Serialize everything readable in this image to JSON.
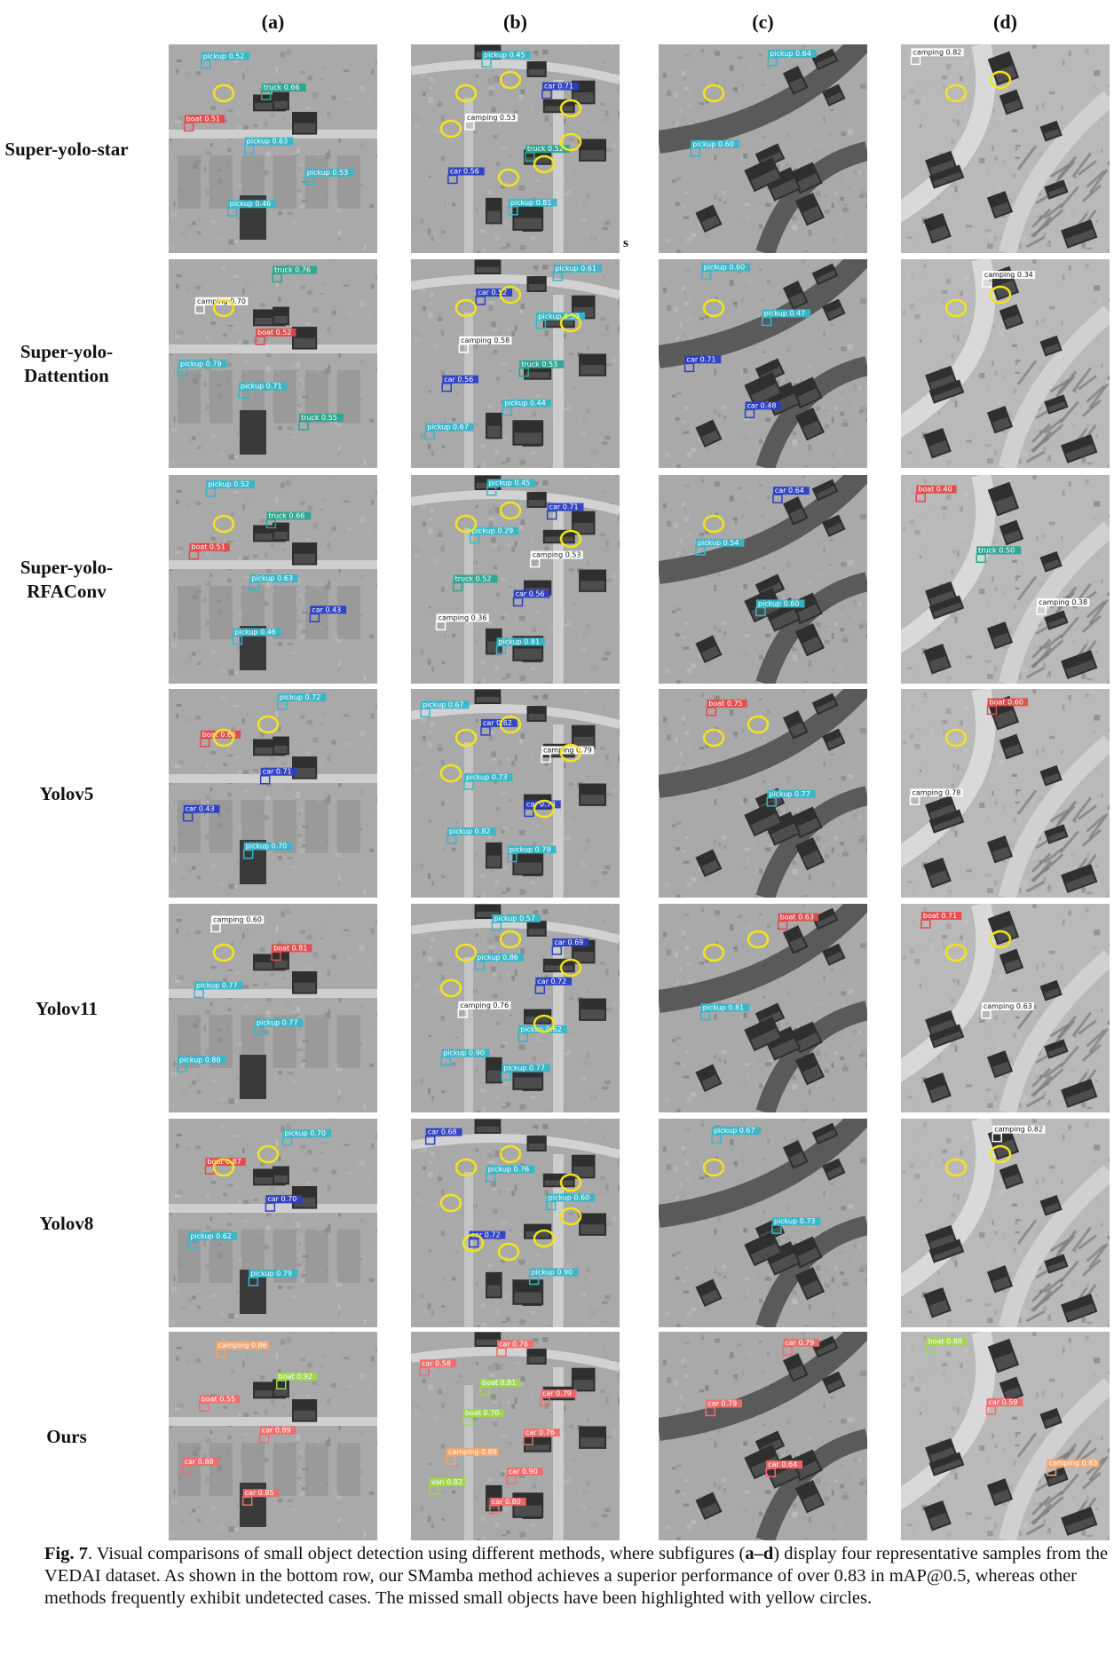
{
  "columns": [
    "(a)",
    "(b)",
    "(c)",
    "(d)"
  ],
  "rows": [
    {
      "label1": "Super-yolo-star",
      "label2": "",
      "panels": [
        {
          "labels": [
            {
              "t": "pickup 0.52",
              "c": "#35b7c9"
            },
            {
              "t": "truck 0.66",
              "c": "#2aa58f"
            },
            {
              "t": "boat 0.51",
              "c": "#e24a4a"
            },
            {
              "t": "pickup 0.63",
              "c": "#35b7c9"
            },
            {
              "t": "pickup 0.53",
              "c": "#35b7c9"
            },
            {
              "t": "pickup 0.46",
              "c": "#35b7c9"
            }
          ],
          "circles": 1
        },
        {
          "labels": [
            {
              "t": "pickup 0.45",
              "c": "#35b7c9"
            },
            {
              "t": "car 0.71",
              "c": "#2b3fc4"
            },
            {
              "t": "camping 0.53",
              "c": "#ffffff"
            },
            {
              "t": "truck 0.52",
              "c": "#2aa58f"
            },
            {
              "t": "car 0.56",
              "c": "#2b3fc4"
            },
            {
              "t": "pickup 0.81",
              "c": "#35b7c9"
            }
          ],
          "circles": 7
        },
        {
          "labels": [
            {
              "t": "pickup 0.64",
              "c": "#35b7c9"
            },
            {
              "t": "pickup 0.60",
              "c": "#35b7c9"
            }
          ],
          "circles": 1
        },
        {
          "labels": [
            {
              "t": "camping 0.82",
              "c": "#ffffff"
            }
          ],
          "circles": 2
        }
      ]
    },
    {
      "label1": "Super-yolo-",
      "label2": "Dattention",
      "panels": [
        {
          "labels": [
            {
              "t": "truck 0.76",
              "c": "#2aa58f"
            },
            {
              "t": "camping 0.70",
              "c": "#ffffff"
            },
            {
              "t": "boat 0.52",
              "c": "#e24a4a"
            },
            {
              "t": "pickup 0.79",
              "c": "#35b7c9"
            },
            {
              "t": "pickup 0.71",
              "c": "#35b7c9"
            },
            {
              "t": "truck 0.55",
              "c": "#2aa58f"
            }
          ],
          "circles": 1
        },
        {
          "labels": [
            {
              "t": "pickup 0.61",
              "c": "#35b7c9"
            },
            {
              "t": "car 0.52",
              "c": "#2b3fc4"
            },
            {
              "t": "pickup 0.59",
              "c": "#35b7c9"
            },
            {
              "t": "camping 0.58",
              "c": "#ffffff"
            },
            {
              "t": "truck 0.53",
              "c": "#2aa58f"
            },
            {
              "t": "car 0.56",
              "c": "#2b3fc4"
            },
            {
              "t": "pickup 0.44",
              "c": "#35b7c9"
            },
            {
              "t": "pickup 0.67",
              "c": "#35b7c9"
            }
          ],
          "circles": 3
        },
        {
          "labels": [
            {
              "t": "pickup 0.60",
              "c": "#35b7c9"
            },
            {
              "t": "pickup 0.47",
              "c": "#35b7c9"
            },
            {
              "t": "car 0.71",
              "c": "#2b3fc4"
            },
            {
              "t": "car 0.48",
              "c": "#2b3fc4"
            }
          ],
          "circles": 1
        },
        {
          "labels": [
            {
              "t": "camping 0.34",
              "c": "#ffffff"
            }
          ],
          "circles": 2
        }
      ]
    },
    {
      "label1": "Super-yolo-",
      "label2": "RFAConv",
      "panels": [
        {
          "labels": [
            {
              "t": "pickup 0.52",
              "c": "#35b7c9"
            },
            {
              "t": "truck 0.66",
              "c": "#2aa58f"
            },
            {
              "t": "boat 0.51",
              "c": "#e24a4a"
            },
            {
              "t": "pickup 0.63",
              "c": "#35b7c9"
            },
            {
              "t": "car 0.43",
              "c": "#2b3fc4"
            },
            {
              "t": "pickup 0.46",
              "c": "#35b7c9"
            }
          ],
          "circles": 1
        },
        {
          "labels": [
            {
              "t": "pickup 0.45",
              "c": "#35b7c9"
            },
            {
              "t": "car 0.71",
              "c": "#2b3fc4"
            },
            {
              "t": "pickup 0.29",
              "c": "#35b7c9"
            },
            {
              "t": "camping 0.53",
              "c": "#ffffff"
            },
            {
              "t": "truck 0.52",
              "c": "#2aa58f"
            },
            {
              "t": "car 0.56",
              "c": "#2b3fc4"
            },
            {
              "t": "camping 0.36",
              "c": "#ffffff"
            },
            {
              "t": "pickup 0.81",
              "c": "#35b7c9"
            }
          ],
          "circles": 3
        },
        {
          "labels": [
            {
              "t": "car 0.64",
              "c": "#2b3fc4"
            },
            {
              "t": "pickup 0.54",
              "c": "#35b7c9"
            },
            {
              "t": "pickup 0.60",
              "c": "#35b7c9"
            }
          ],
          "circles": 1
        },
        {
          "labels": [
            {
              "t": "boat 0.40",
              "c": "#e24a4a"
            },
            {
              "t": "truck 0.50",
              "c": "#2aa58f"
            },
            {
              "t": "camping 0.38",
              "c": "#ffffff"
            }
          ],
          "circles": 0
        }
      ]
    },
    {
      "label1": "Yolov5",
      "label2": "",
      "panels": [
        {
          "labels": [
            {
              "t": "pickup 0.72",
              "c": "#35b7c9"
            },
            {
              "t": "boat 0.65",
              "c": "#e24a4a"
            },
            {
              "t": "car 0.71",
              "c": "#2b3fc4"
            },
            {
              "t": "car 0.43",
              "c": "#2b3fc4"
            },
            {
              "t": "pickup 0.70",
              "c": "#35b7c9"
            }
          ],
          "circles": 2
        },
        {
          "labels": [
            {
              "t": "pickup 0.67",
              "c": "#35b7c9"
            },
            {
              "t": "car 0.62",
              "c": "#2b3fc4"
            },
            {
              "t": "camping 0.79",
              "c": "#ffffff"
            },
            {
              "t": "pickup 0.73",
              "c": "#35b7c9"
            },
            {
              "t": "car 0.78",
              "c": "#2b3fc4"
            },
            {
              "t": "pickup 0.82",
              "c": "#35b7c9"
            },
            {
              "t": "pickup 0.79",
              "c": "#35b7c9"
            }
          ],
          "circles": 5
        },
        {
          "labels": [
            {
              "t": "boat 0.75",
              "c": "#e24a4a"
            },
            {
              "t": "pickup 0.77",
              "c": "#35b7c9"
            }
          ],
          "circles": 2
        },
        {
          "labels": [
            {
              "t": "boat 0.60",
              "c": "#e24a4a"
            },
            {
              "t": "camping 0.78",
              "c": "#ffffff"
            }
          ],
          "circles": 1
        }
      ]
    },
    {
      "label1": "Yolov11",
      "label2": "",
      "panels": [
        {
          "labels": [
            {
              "t": "camping 0.60",
              "c": "#ffffff"
            },
            {
              "t": "boat 0.81",
              "c": "#e24a4a"
            },
            {
              "t": "pickup 0.77",
              "c": "#35b7c9"
            },
            {
              "t": "pickup 0.77",
              "c": "#35b7c9"
            },
            {
              "t": "pickup 0.80",
              "c": "#35b7c9"
            }
          ],
          "circles": 1
        },
        {
          "labels": [
            {
              "t": "pickup 0.57",
              "c": "#35b7c9"
            },
            {
              "t": "car 0.69",
              "c": "#2b3fc4"
            },
            {
              "t": "pickup 0.86",
              "c": "#35b7c9"
            },
            {
              "t": "car 0.72",
              "c": "#2b3fc4"
            },
            {
              "t": "camping 0.76",
              "c": "#ffffff"
            },
            {
              "t": "pickup 0.62",
              "c": "#35b7c9"
            },
            {
              "t": "pickup 0.90",
              "c": "#35b7c9"
            },
            {
              "t": "pickup 0.77",
              "c": "#35b7c9"
            }
          ],
          "circles": 5
        },
        {
          "labels": [
            {
              "t": "boat 0.63",
              "c": "#e24a4a"
            },
            {
              "t": "pickup 0.81",
              "c": "#35b7c9"
            }
          ],
          "circles": 2
        },
        {
          "labels": [
            {
              "t": "boat 0.71",
              "c": "#e24a4a"
            },
            {
              "t": "camping 0.63",
              "c": "#ffffff"
            }
          ],
          "circles": 2
        }
      ]
    },
    {
      "label1": "Yolov8",
      "label2": "",
      "panels": [
        {
          "labels": [
            {
              "t": "pickup 0.70",
              "c": "#35b7c9"
            },
            {
              "t": "boat 0.87",
              "c": "#e24a4a"
            },
            {
              "t": "car 0.70",
              "c": "#2b3fc4"
            },
            {
              "t": "pickup 0.62",
              "c": "#35b7c9"
            },
            {
              "t": "pickup 0.79",
              "c": "#35b7c9"
            }
          ],
          "circles": 2
        },
        {
          "labels": [
            {
              "t": "car 0.68",
              "c": "#2b3fc4"
            },
            {
              "t": "pickup 0.76",
              "c": "#35b7c9"
            },
            {
              "t": "pickup 0.60",
              "c": "#35b7c9"
            },
            {
              "t": "car 0.72",
              "c": "#2b3fc4"
            },
            {
              "t": "pickup 0.90",
              "c": "#35b7c9"
            }
          ],
          "circles": 8
        },
        {
          "labels": [
            {
              "t": "pickup 0.67",
              "c": "#35b7c9"
            },
            {
              "t": "pickup 0.73",
              "c": "#35b7c9"
            }
          ],
          "circles": 1
        },
        {
          "labels": [
            {
              "t": "camping 0.82",
              "c": "#ffffff"
            }
          ],
          "circles": 2
        }
      ]
    },
    {
      "label1": "Ours",
      "label2": "",
      "panels": [
        {
          "labels": [
            {
              "t": "camping 0.86",
              "c": "#f7a56a"
            },
            {
              "t": "boat 0.92",
              "c": "#9ed94a"
            },
            {
              "t": "boat 0.55",
              "c": "#f26b6b"
            },
            {
              "t": "car 0.89",
              "c": "#f26b6b"
            },
            {
              "t": "car 0.88",
              "c": "#f26b6b"
            },
            {
              "t": "car 0.85",
              "c": "#f26b6b"
            }
          ],
          "circles": 0
        },
        {
          "labels": [
            {
              "t": "car 0.76",
              "c": "#f26b6b"
            },
            {
              "t": "car 0.58",
              "c": "#f26b6b"
            },
            {
              "t": "boat 0.81",
              "c": "#9ed94a"
            },
            {
              "t": "car 0.79",
              "c": "#f26b6b"
            },
            {
              "t": "boat 0.70",
              "c": "#9ed94a"
            },
            {
              "t": "car 0.76",
              "c": "#f26b6b"
            },
            {
              "t": "camping 0.89",
              "c": "#f7a56a"
            },
            {
              "t": "car 0.90",
              "c": "#f26b6b"
            },
            {
              "t": "van 0.82",
              "c": "#9ed94a"
            },
            {
              "t": "car 0.80",
              "c": "#f26b6b"
            }
          ],
          "circles": 0
        },
        {
          "labels": [
            {
              "t": "car 0.79",
              "c": "#f26b6b"
            },
            {
              "t": "car 0.79",
              "c": "#f26b6b"
            },
            {
              "t": "car 0.64",
              "c": "#f26b6b"
            }
          ],
          "circles": 0
        },
        {
          "labels": [
            {
              "t": "boat 0.88",
              "c": "#9ed94a"
            },
            {
              "t": "car 0.59",
              "c": "#f26b6b"
            },
            {
              "t": "camping 0.83",
              "c": "#f7a56a"
            }
          ],
          "circles": 0
        }
      ]
    }
  ],
  "stray_mark": "s",
  "caption": {
    "fig": "Fig. 7",
    "p1": ".  Visual comparisons of small object detection using different methods, where subfigures (",
    "b1": "a–d",
    "p2": ") display four representative samples from the VEDAI dataset. As shown in the bottom row, our SMamba method achieves a superior performance of over 0.83 in mAP@0.5, whereas other methods frequently exhibit undetected cases. The missed small objects have been highlighted with yellow circles."
  },
  "colors": {
    "circle": "#f2e41a",
    "ground_light": "#b4b4b4",
    "ground_dark": "#6e6e6e"
  }
}
